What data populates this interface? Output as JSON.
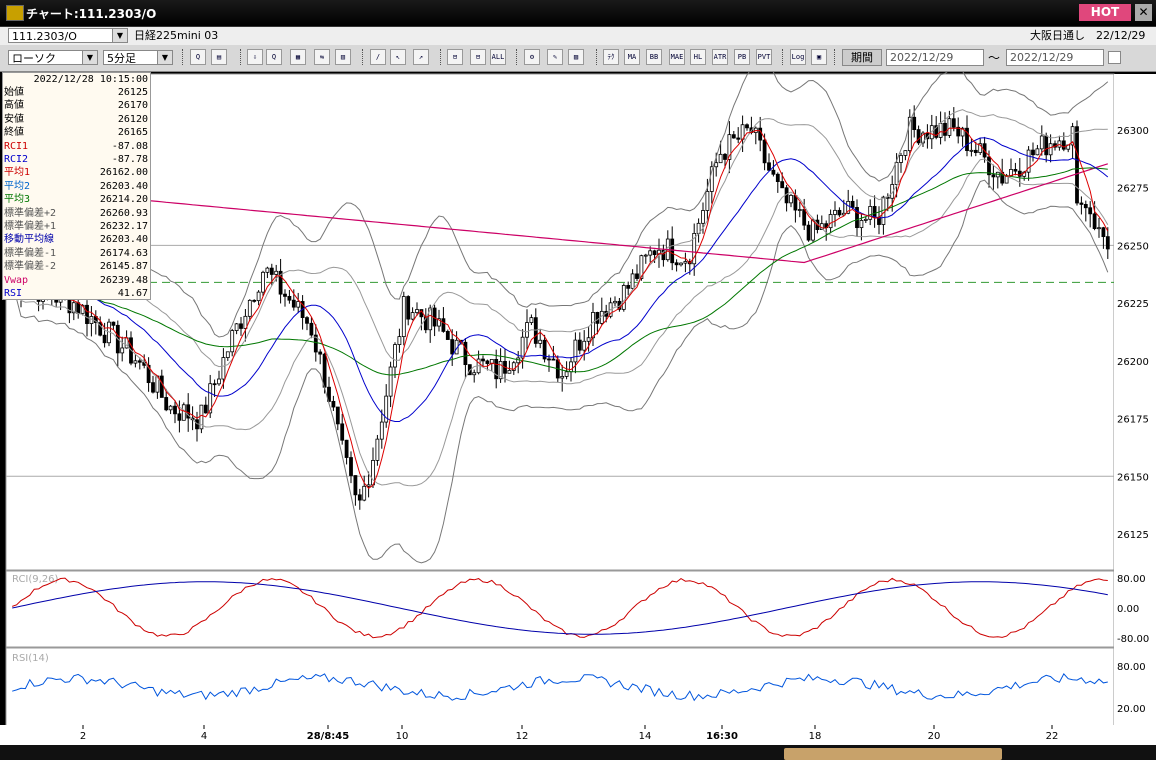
{
  "window": {
    "title": "チャート:111.2303/O",
    "hot_label": "HOT",
    "close_label": "✕"
  },
  "header": {
    "symbol": "111.2303/O",
    "name": "日経225mini 03",
    "session": "大阪日通し",
    "date": "22/12/29"
  },
  "toolbar": {
    "chart_type": "ローソク",
    "interval": "5分足",
    "period_label": "期間",
    "date_from": "2022/12/29",
    "date_to": "2022/12/29",
    "tilde": "～",
    "buttons": [
      "Q",
      "▤",
      "⇩",
      "Q",
      "▦",
      "⇆",
      "▥",
      "/",
      "↖",
      "↗",
      "⊟",
      "⊟",
      "ALL",
      "⚙",
      "✎",
      "▨",
      "ﾃｸ",
      "MA",
      "BB",
      "MAE",
      "HL",
      "ATR",
      "PB",
      "PVT",
      "Log",
      "▣"
    ]
  },
  "info_panel": {
    "timestamp": "2022/12/28  10:15:00",
    "rows": [
      {
        "label": "始値",
        "value": "26125",
        "color": "#000000"
      },
      {
        "label": "高値",
        "value": "26170",
        "color": "#000000"
      },
      {
        "label": "安値",
        "value": "26120",
        "color": "#000000"
      },
      {
        "label": "終値",
        "value": "26165",
        "color": "#000000"
      },
      {
        "label": "RCI1",
        "value": "-87.08",
        "color": "#cc0000"
      },
      {
        "label": "RCI2",
        "value": "-87.78",
        "color": "#0000cc"
      },
      {
        "label": "平均1",
        "value": "26162.00",
        "color": "#cc0000"
      },
      {
        "label": "平均2",
        "value": "26203.40",
        "color": "#0066cc"
      },
      {
        "label": "平均3",
        "value": "26214.20",
        "color": "#007700"
      },
      {
        "label": "標準偏差+2",
        "value": "26260.93",
        "color": "#555555"
      },
      {
        "label": "標準偏差+1",
        "value": "26232.17",
        "color": "#555555"
      },
      {
        "label": "移動平均線",
        "value": "26203.40",
        "color": "#0000aa"
      },
      {
        "label": "標準偏差-1",
        "value": "26174.63",
        "color": "#555555"
      },
      {
        "label": "標準偏差-2",
        "value": "26145.87",
        "color": "#555555"
      },
      {
        "label": "Vwap",
        "value": "26239.48",
        "color": "#cc0066"
      },
      {
        "label": "RSI",
        "value": "41.67",
        "color": "#0000cc"
      }
    ]
  },
  "price_axis": {
    "ticks": [
      "26300",
      "26275",
      "26250",
      "26225",
      "26200",
      "26175",
      "26150",
      "26125"
    ]
  },
  "rci_panel": {
    "label": "RCI(9,26)",
    "ticks": [
      "80.00",
      "0.00",
      "-80.00"
    ]
  },
  "rsi_panel": {
    "label": "RSI(14)",
    "ticks": [
      "80.00",
      "20.00"
    ]
  },
  "time_axis": {
    "labels": [
      "2",
      "4",
      "28/8:45",
      "10",
      "12",
      "14",
      "16:30",
      "18",
      "20",
      "22"
    ]
  },
  "colors": {
    "rci1": "#cc0000",
    "rci2": "#0000aa",
    "ma1": "#dd0000",
    "ma2": "#0000cc",
    "ma3": "#007700",
    "vwap": "#cc0066",
    "rsi": "#0055dd"
  }
}
